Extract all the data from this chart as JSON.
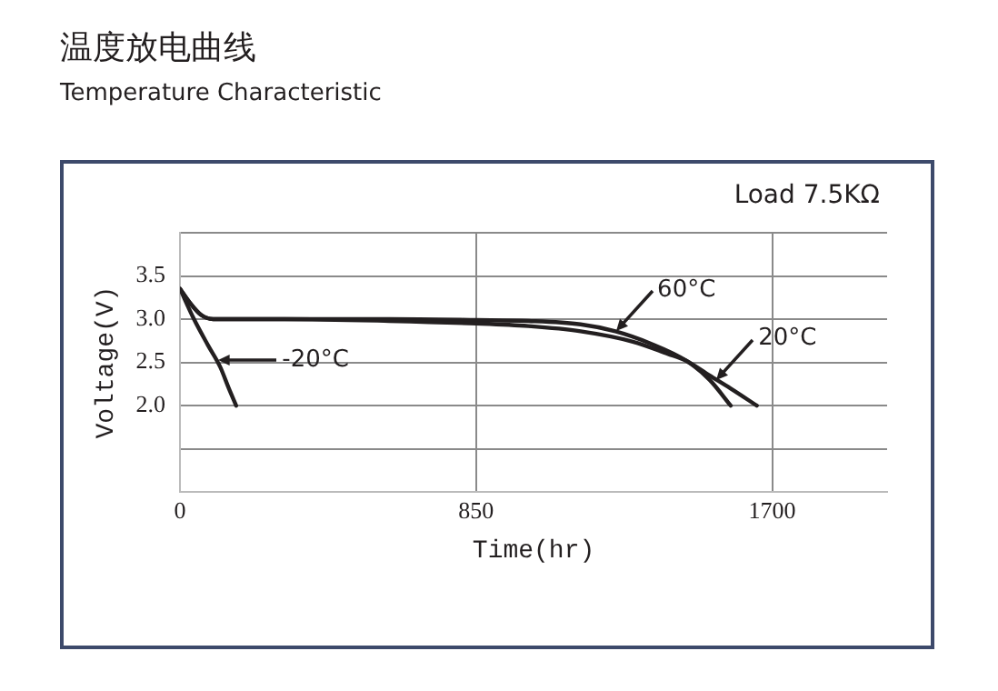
{
  "chart_data": {
    "type": "line",
    "title": "温度放电曲线",
    "subtitle": "Temperature Characteristic",
    "xlabel": "Time(hr)",
    "ylabel": "Voltage(V)",
    "xlim": [
      0,
      2030
    ],
    "xticks": [
      0,
      850,
      1700
    ],
    "ylim": [
      1,
      4
    ],
    "yticks": [
      {
        "value": 1,
        "label": null
      },
      {
        "value": 1.5,
        "label": null
      },
      {
        "value": 2,
        "label": "2.0"
      },
      {
        "value": 2.5,
        "label": "2.5"
      },
      {
        "value": 3,
        "label": "3.0"
      },
      {
        "value": 3.5,
        "label": "3.5"
      },
      {
        "value": 4,
        "label": null
      }
    ],
    "grid": true,
    "legend": false,
    "marker": "none",
    "line_style": "solid",
    "series": [
      {
        "color": "#231f20",
        "x": [
          0,
          40,
          80,
          115,
          140,
          161
        ],
        "values": [
          3.35,
          3.0,
          2.7,
          2.45,
          2.2,
          2.0
        ]
      },
      {
        "color": "#231f20",
        "x": [
          0,
          30,
          60,
          95,
          300,
          600,
          850,
          1000,
          1150,
          1300,
          1400,
          1453,
          1520,
          1580,
          1656
        ],
        "values": [
          3.35,
          3.18,
          3.05,
          3.0,
          3.0,
          2.98,
          2.95,
          2.92,
          2.86,
          2.74,
          2.6,
          2.52,
          2.35,
          2.2,
          2.0
        ]
      },
      {
        "color": "#231f20",
        "x": [
          0,
          30,
          60,
          95,
          300,
          600,
          850,
          1000,
          1150,
          1250,
          1350,
          1453,
          1520,
          1581
        ],
        "values": [
          3.35,
          3.18,
          3.05,
          3.0,
          3.0,
          3.0,
          2.99,
          2.98,
          2.94,
          2.86,
          2.72,
          2.52,
          2.3,
          2.0
        ]
      }
    ],
    "annotations": [
      "Load 7.5KΩ",
      {
        "text": "-20°C",
        "x": 110,
        "y": 2.52
      },
      {
        "text": "60°C",
        "x": 1250,
        "y": 2.86
      },
      {
        "text": "20°C",
        "x": 1540,
        "y": 2.3
      }
    ]
  }
}
